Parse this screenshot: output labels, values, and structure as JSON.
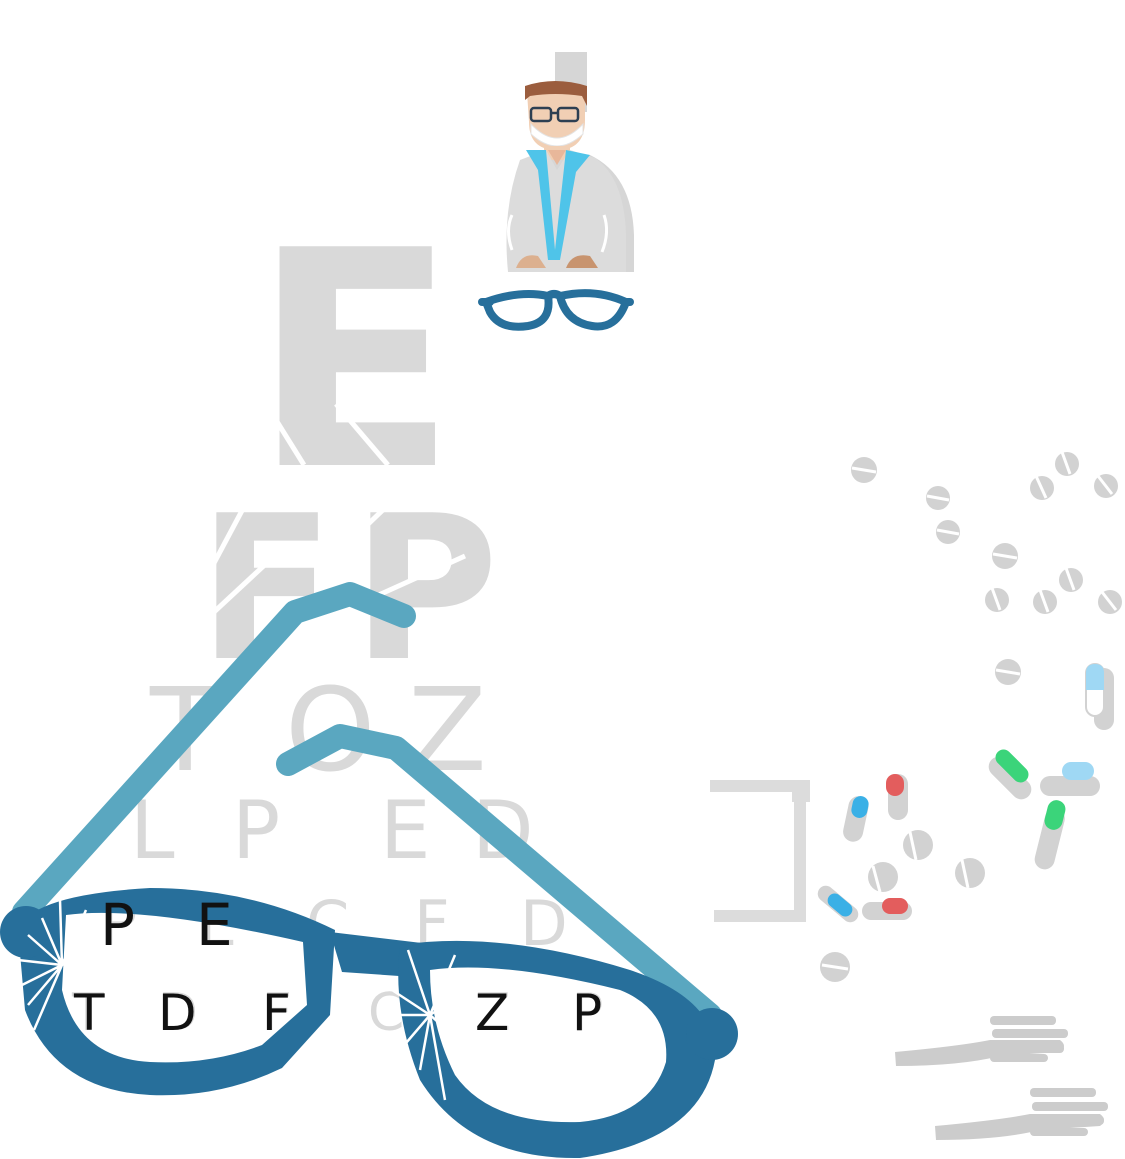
{
  "eye_chart": {
    "rows": [
      [
        "E"
      ],
      [
        "F",
        "P"
      ],
      [
        "T",
        "O",
        "Z"
      ],
      [
        "L",
        "P",
        "E",
        "D"
      ],
      [
        "P",
        "E",
        "C",
        "F",
        "D"
      ],
      [
        "T",
        "D",
        "F",
        "C",
        "Z",
        "P"
      ]
    ]
  },
  "lens_text": {
    "left_row1": [
      "P",
      "E"
    ],
    "left_row2": [
      "T",
      "D",
      "F"
    ],
    "right_row2": [
      "C",
      "Z",
      "P"
    ]
  },
  "colors": {
    "chart_letters": "#d9d9d9",
    "glasses_frame": "#276f9b",
    "glasses_temples": "#5aa7c0",
    "pill_shadow": "#d2d2d2",
    "capsule_red": "#e35d5d",
    "capsule_blue": "#3ab0e6",
    "capsule_green": "#3bd47a",
    "capsule_light_blue": "#9fd8f4"
  },
  "icons": [
    "eye-chart",
    "doctor-icon",
    "glasses-icon",
    "pills-icon",
    "capsule-icon",
    "hand-icon"
  ]
}
